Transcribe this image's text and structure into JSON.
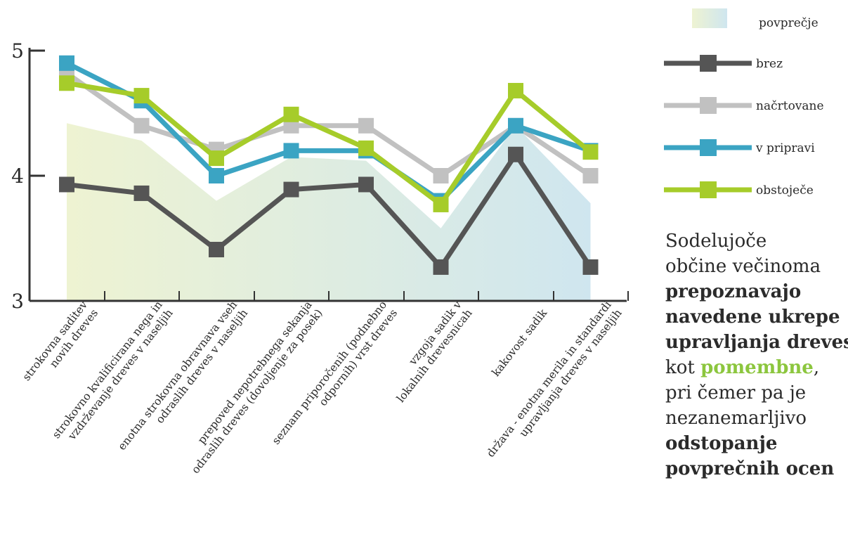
{
  "chart_data": {
    "type": "line",
    "categories": [
      [
        "strokovna saditev",
        "novih dreves"
      ],
      [
        "strokovno kvalificirana nega in",
        "vzdrževanje dreves v naseljih"
      ],
      [
        "enotna strokovna obravnava vseh",
        "odraslih dreves v naseljih"
      ],
      [
        "prepoved nepotrebnega sekanja",
        "odraslih dreves (dovoljenje za posek)"
      ],
      [
        "seznam priporočenih (podnebno",
        "odpornih) vrst dreves"
      ],
      [
        "vzgoja sadik v",
        "lokalnih drevesnicah"
      ],
      [
        "kakovost sadik"
      ],
      [
        "država - enotna merila in standardi",
        "upravljanja dreves v naseljih"
      ]
    ],
    "ylim": [
      3,
      5
    ],
    "yticks": [
      "3",
      "4",
      "5"
    ],
    "area": {
      "name": "povprečje",
      "values": [
        4.42,
        4.28,
        3.8,
        4.15,
        4.12,
        3.58,
        4.4,
        3.78
      ],
      "colors": [
        "#eef3d2",
        "#cfe6ef"
      ]
    },
    "series": [
      {
        "name": "brez",
        "color": "#555555",
        "values": [
          3.93,
          3.86,
          3.41,
          3.89,
          3.93,
          3.27,
          4.17,
          3.27
        ]
      },
      {
        "name": "načrtovane",
        "color": "#c1c1c1",
        "values": [
          4.82,
          4.4,
          4.21,
          4.4,
          4.4,
          4.0,
          4.4,
          4.0
        ]
      },
      {
        "name": "v pripravi",
        "color": "#3ba4c3",
        "values": [
          4.9,
          4.6,
          4.0,
          4.2,
          4.2,
          3.8,
          4.4,
          4.2
        ]
      },
      {
        "name": "obstoječe",
        "color": "#a6cc2a",
        "values": [
          4.74,
          4.64,
          4.14,
          4.49,
          4.22,
          3.77,
          4.68,
          4.19
        ]
      }
    ]
  },
  "note": {
    "lines": [
      {
        "text": "Sodelujoče",
        "style": "normal"
      },
      {
        "text": "občine večinoma",
        "style": "normal"
      },
      {
        "text": "prepoznavajo",
        "style": "bold"
      },
      {
        "text": "navedene ukrepe",
        "style": "bold"
      },
      {
        "text": "upravljanja dreves",
        "style": "bold"
      },
      {
        "text": "kot ",
        "style": "normal",
        "highlight": "pomembne",
        "tail": ","
      },
      {
        "text": "pri čemer pa je",
        "style": "normal"
      },
      {
        "text": "nezanemarljivo",
        "style": "normal"
      },
      {
        "text": "odstopanje",
        "style": "bold"
      },
      {
        "text": "povprečnih ocen",
        "style": "bold"
      }
    ]
  }
}
